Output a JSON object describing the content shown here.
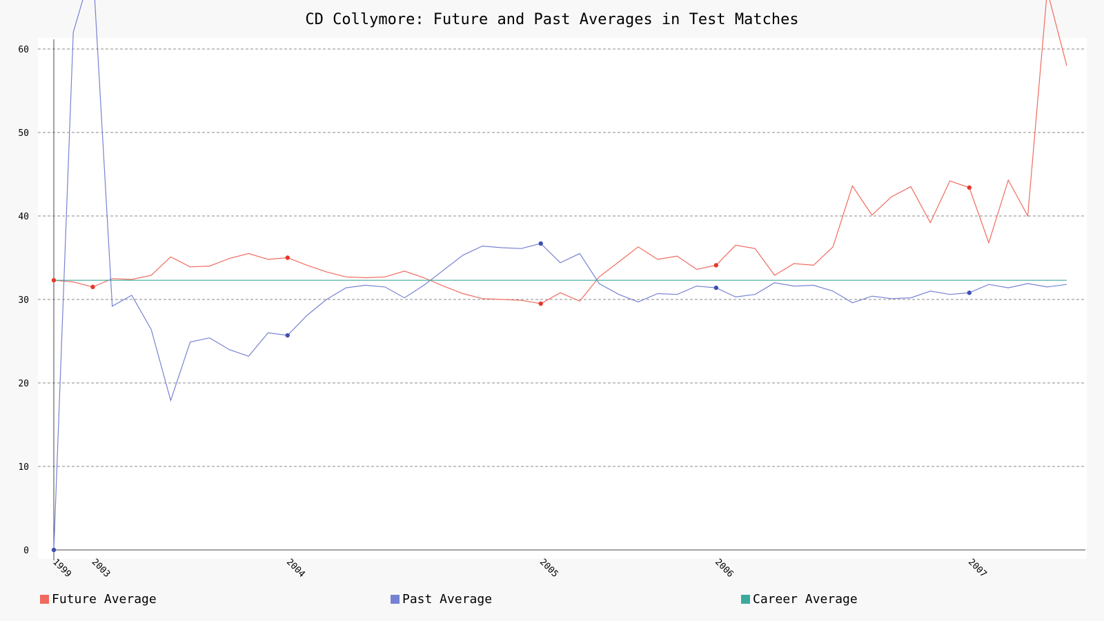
{
  "chart_data": {
    "type": "line",
    "title": "CD Collymore: Future and Past Averages in Test Matches",
    "xlabel": "",
    "ylabel": "",
    "ylim": [
      0,
      60
    ],
    "yticks": [
      0,
      10,
      20,
      30,
      40,
      50,
      60
    ],
    "grid": true,
    "legend_position": "bottom",
    "xtick_labels": [
      {
        "label": "1999",
        "index": 0
      },
      {
        "label": "2003",
        "index": 2
      },
      {
        "label": "2004",
        "index": 12
      },
      {
        "label": "2005",
        "index": 25
      },
      {
        "label": "2006",
        "index": 34
      },
      {
        "label": "2007",
        "index": 47
      }
    ],
    "marker_indices": [
      0,
      2,
      12,
      25,
      34,
      47
    ],
    "series": [
      {
        "name": "Future Average",
        "color": "#f06a5e",
        "marker_color": "#e8372a",
        "values": [
          32.3,
          32.1,
          31.5,
          32.5,
          32.4,
          32.9,
          35.1,
          33.9,
          34.0,
          34.9,
          35.5,
          34.8,
          35.0,
          34.1,
          33.3,
          32.7,
          32.6,
          32.7,
          33.4,
          32.6,
          31.6,
          30.7,
          30.1,
          30.0,
          29.9,
          29.5,
          30.8,
          29.8,
          32.7,
          34.5,
          36.3,
          34.8,
          35.2,
          33.6,
          34.1,
          36.5,
          36.1,
          32.9,
          34.3,
          34.1,
          36.3,
          43.6,
          40.1,
          42.3,
          43.5,
          39.2,
          44.2,
          43.4,
          36.8,
          44.3,
          40.0,
          67.0,
          58.0
        ]
      },
      {
        "name": "Past Average",
        "color": "#7682d2",
        "marker_color": "#3f4fb3",
        "values": [
          0,
          62.0,
          70.0,
          29.2,
          30.5,
          26.4,
          17.9,
          24.9,
          25.4,
          24.0,
          23.2,
          26.0,
          25.7,
          28.1,
          30.0,
          31.4,
          31.7,
          31.5,
          30.2,
          31.7,
          33.5,
          35.3,
          36.4,
          36.2,
          36.1,
          36.7,
          34.4,
          35.5,
          31.9,
          30.6,
          29.7,
          30.7,
          30.6,
          31.6,
          31.4,
          30.3,
          30.6,
          32.0,
          31.6,
          31.7,
          31.0,
          29.6,
          30.4,
          30.1,
          30.2,
          31.0,
          30.6,
          30.8,
          31.8,
          31.4,
          31.9,
          31.5,
          31.8
        ]
      },
      {
        "name": "Career Average",
        "color": "#3ba99c",
        "values": [
          32.3,
          32.3
        ]
      }
    ]
  }
}
